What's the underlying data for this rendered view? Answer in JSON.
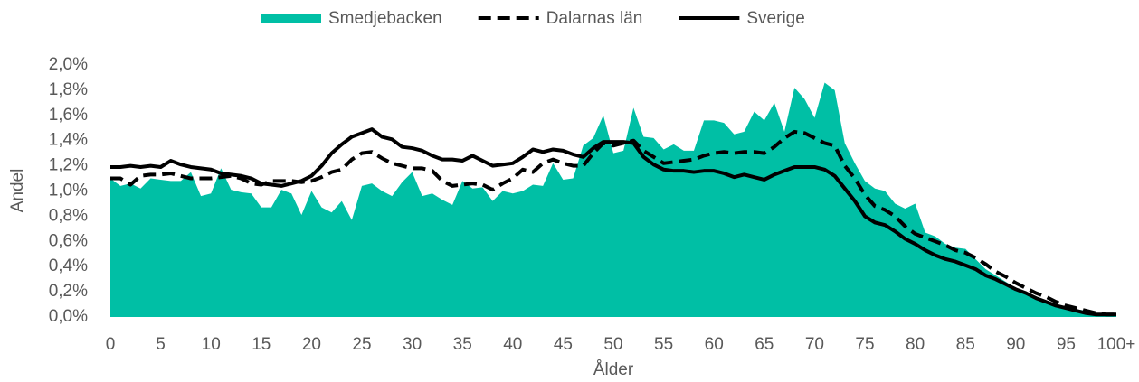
{
  "chart_data": {
    "type": "line",
    "ylabel": "Andel",
    "xlabel": "Ålder",
    "categories": [
      "0",
      null,
      null,
      null,
      null,
      "5",
      null,
      null,
      null,
      null,
      "10",
      null,
      null,
      null,
      null,
      "15",
      null,
      null,
      null,
      null,
      "20",
      null,
      null,
      null,
      null,
      "25",
      null,
      null,
      null,
      null,
      "30",
      null,
      null,
      null,
      null,
      "35",
      null,
      null,
      null,
      null,
      "40",
      null,
      null,
      null,
      null,
      "45",
      null,
      null,
      null,
      null,
      "50",
      null,
      null,
      null,
      null,
      "55",
      null,
      null,
      null,
      null,
      "60",
      null,
      null,
      null,
      null,
      "65",
      null,
      null,
      null,
      null,
      "70",
      null,
      null,
      null,
      null,
      "75",
      null,
      null,
      null,
      null,
      "80",
      null,
      null,
      null,
      null,
      "85",
      null,
      null,
      null,
      null,
      "90",
      null,
      null,
      null,
      null,
      "95",
      null,
      null,
      null,
      null,
      "100+"
    ],
    "ylim": [
      0,
      2.0
    ],
    "yticks": [
      {
        "value": 0,
        "label": "0,0%"
      },
      {
        "value": 0.2,
        "label": "0,2%"
      },
      {
        "value": 0.4,
        "label": "0,4%"
      },
      {
        "value": 0.6,
        "label": "0,6%"
      },
      {
        "value": 0.8,
        "label": "0,8%"
      },
      {
        "value": 1.0,
        "label": "1,0%"
      },
      {
        "value": 1.2,
        "label": "1,2%"
      },
      {
        "value": 1.4,
        "label": "1,4%"
      },
      {
        "value": 1.6,
        "label": "1,6%"
      },
      {
        "value": 1.8,
        "label": "1,8%"
      },
      {
        "value": 2.0,
        "label": "2,0%"
      }
    ],
    "grid": false,
    "legend": "top",
    "series": [
      {
        "name": "Smedjebacken",
        "type": "area",
        "color": "#00bfa5",
        "values": [
          1.1,
          1.04,
          1.06,
          1.02,
          1.1,
          1.09,
          1.08,
          1.08,
          1.15,
          0.96,
          0.98,
          1.18,
          1.01,
          0.99,
          0.98,
          0.87,
          0.87,
          1.01,
          0.98,
          0.81,
          1.0,
          0.87,
          0.83,
          0.92,
          0.77,
          1.04,
          1.06,
          1.0,
          0.96,
          1.07,
          1.15,
          0.96,
          0.98,
          0.93,
          0.89,
          1.08,
          1.02,
          1.03,
          0.92,
          1.0,
          0.98,
          1.0,
          1.05,
          1.04,
          1.22,
          1.09,
          1.1,
          1.36,
          1.42,
          1.6,
          1.3,
          1.32,
          1.66,
          1.43,
          1.42,
          1.33,
          1.37,
          1.32,
          1.32,
          1.56,
          1.56,
          1.54,
          1.45,
          1.47,
          1.63,
          1.56,
          1.7,
          1.47,
          1.82,
          1.73,
          1.58,
          1.86,
          1.8,
          1.38,
          1.22,
          1.08,
          1.02,
          1.0,
          0.9,
          0.86,
          0.9,
          0.67,
          0.64,
          0.58,
          0.55,
          0.54,
          0.46,
          0.38,
          0.33,
          0.28,
          0.23,
          0.2,
          0.16,
          0.13,
          0.1,
          0.08,
          0.06,
          0.05,
          0.03,
          0.02,
          0.02
        ]
      },
      {
        "name": "Dalarnas län",
        "type": "line",
        "dashed": true,
        "color": "#000000",
        "values": [
          1.1,
          1.1,
          1.05,
          1.12,
          1.13,
          1.13,
          1.14,
          1.12,
          1.1,
          1.1,
          1.1,
          1.11,
          1.12,
          1.1,
          1.06,
          1.05,
          1.08,
          1.08,
          1.08,
          1.07,
          1.08,
          1.11,
          1.15,
          1.17,
          1.25,
          1.3,
          1.31,
          1.26,
          1.22,
          1.2,
          1.18,
          1.18,
          1.16,
          1.08,
          1.04,
          1.05,
          1.06,
          1.05,
          1.01,
          1.06,
          1.1,
          1.17,
          1.15,
          1.22,
          1.25,
          1.22,
          1.2,
          1.2,
          1.3,
          1.38,
          1.36,
          1.38,
          1.4,
          1.32,
          1.27,
          1.22,
          1.23,
          1.24,
          1.25,
          1.28,
          1.3,
          1.31,
          1.3,
          1.31,
          1.31,
          1.3,
          1.35,
          1.42,
          1.47,
          1.46,
          1.42,
          1.38,
          1.36,
          1.2,
          1.1,
          0.97,
          0.88,
          0.85,
          0.8,
          0.72,
          0.66,
          0.63,
          0.6,
          0.57,
          0.53,
          0.51,
          0.47,
          0.42,
          0.36,
          0.32,
          0.27,
          0.23,
          0.19,
          0.16,
          0.12,
          0.09,
          0.07,
          0.05,
          0.03,
          0.02,
          0.02
        ]
      },
      {
        "name": "Sverige",
        "type": "line",
        "dashed": false,
        "color": "#000000",
        "values": [
          1.19,
          1.19,
          1.2,
          1.19,
          1.2,
          1.19,
          1.24,
          1.21,
          1.19,
          1.18,
          1.17,
          1.14,
          1.13,
          1.12,
          1.1,
          1.06,
          1.05,
          1.04,
          1.06,
          1.08,
          1.12,
          1.2,
          1.3,
          1.37,
          1.43,
          1.46,
          1.49,
          1.43,
          1.41,
          1.35,
          1.34,
          1.32,
          1.28,
          1.25,
          1.25,
          1.24,
          1.28,
          1.24,
          1.2,
          1.21,
          1.22,
          1.27,
          1.33,
          1.31,
          1.33,
          1.32,
          1.29,
          1.27,
          1.34,
          1.39,
          1.39,
          1.39,
          1.38,
          1.27,
          1.21,
          1.17,
          1.16,
          1.16,
          1.15,
          1.16,
          1.16,
          1.14,
          1.11,
          1.13,
          1.11,
          1.09,
          1.13,
          1.16,
          1.19,
          1.19,
          1.19,
          1.17,
          1.12,
          1.02,
          0.92,
          0.8,
          0.75,
          0.73,
          0.68,
          0.62,
          0.58,
          0.53,
          0.49,
          0.46,
          0.44,
          0.41,
          0.38,
          0.33,
          0.3,
          0.26,
          0.22,
          0.19,
          0.15,
          0.12,
          0.09,
          0.07,
          0.05,
          0.03,
          0.02,
          0.02,
          0.02
        ]
      }
    ]
  }
}
